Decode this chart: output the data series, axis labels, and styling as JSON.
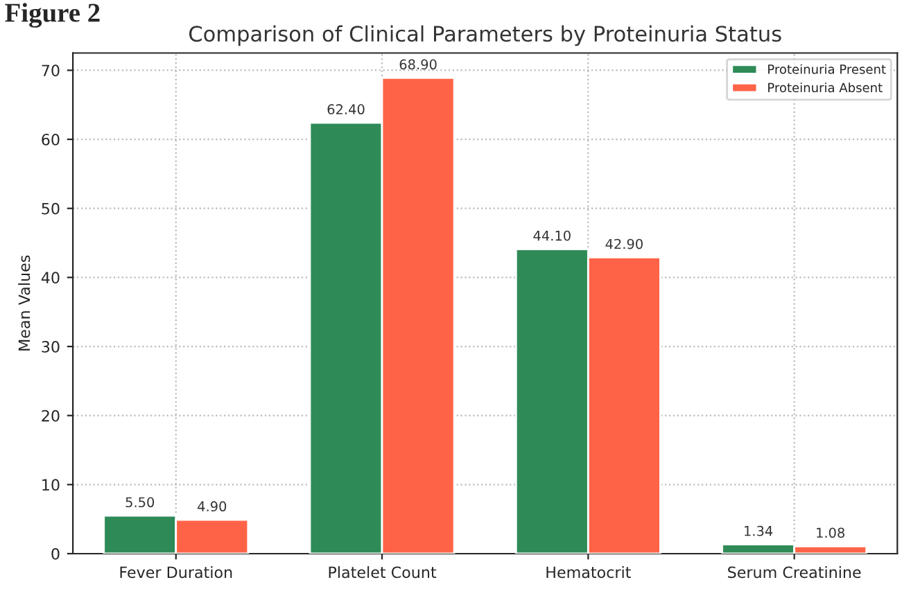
{
  "chart_data": {
    "type": "bar",
    "title": "Comparison of Clinical Parameters by Proteinuria Status",
    "ylabel": "Mean Values",
    "annotations": [
      "Figure 2"
    ],
    "categories": [
      "Fever Duration",
      "Platelet Count",
      "Hematocrit",
      "Serum Creatinine"
    ],
    "series": [
      {
        "name": "Proteinuria Present",
        "color": "#2e8b57",
        "values": [
          5.5,
          62.4,
          44.1,
          1.34
        ]
      },
      {
        "name": "Proteinuria Absent",
        "color": "#ff6347",
        "values": [
          4.9,
          68.9,
          42.9,
          1.08
        ]
      }
    ],
    "value_labels": [
      [
        "5.50",
        "62.40",
        "44.10",
        "1.34"
      ],
      [
        "4.90",
        "68.90",
        "42.90",
        "1.08"
      ]
    ],
    "ylim": [
      0,
      72.5
    ],
    "yticks": [
      0,
      10,
      20,
      30,
      40,
      50,
      60,
      70
    ],
    "grid": true,
    "legend": "top right"
  }
}
